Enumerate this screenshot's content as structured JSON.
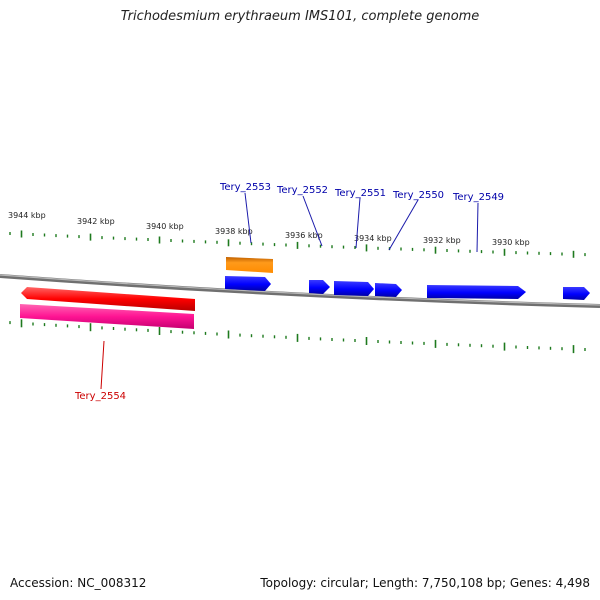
{
  "title": "Trichodesmium erythraeum IMS101, complete genome",
  "footer": {
    "accession": "Accession: NC_008312",
    "summary": "Topology: circular; Length: 7,750,108 bp; Genes: 4,498"
  },
  "ticks": [
    "3944 kbp",
    "3942 kbp",
    "3940 kbp",
    "3938 kbp",
    "3936 kbp",
    "3934 kbp",
    "3932 kbp",
    "3930 kbp"
  ],
  "genes": [
    {
      "id": "Tery_2554",
      "color": "#ff0000"
    },
    {
      "id": "Tery_2553",
      "color": "#ff8c00"
    },
    {
      "id": "Tery_2552",
      "color": "#0000ff"
    },
    {
      "id": "Tery_2551",
      "color": "#0000ff"
    },
    {
      "id": "Tery_2550",
      "color": "#0000ff"
    },
    {
      "id": "Tery_2549",
      "color": "#0000ff"
    }
  ],
  "colors": {
    "tick": "#1e7a1e",
    "backbone": "#888888",
    "forward_gene": "#0000ff",
    "reverse_gene": "#ff0000",
    "reverse_gene_shadow": "#ff3399",
    "label_blue": "#00008b",
    "label_red": "#cc0000",
    "orange_gene": "#ff8c00"
  }
}
